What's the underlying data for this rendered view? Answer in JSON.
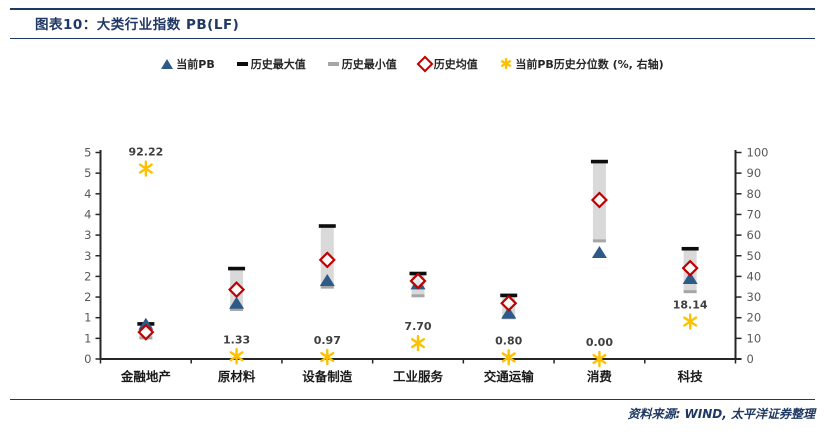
{
  "header": {
    "title": "图表10：大类行业指数 PB(LF)"
  },
  "legend": {
    "items": [
      {
        "label": "当前PB",
        "marker": "triangle-icon",
        "color": "#2D5A87"
      },
      {
        "label": "历史最大值",
        "marker": "dash-icon",
        "color": "#0D0D0D"
      },
      {
        "label": "历史最小值",
        "marker": "dash-icon",
        "color": "#A6A6A6"
      },
      {
        "label": "历史均值",
        "marker": "diamond-icon",
        "color": "#C00000"
      },
      {
        "label": "当前PB历史分位数 (%, 右轴)",
        "marker": "asterisk-icon",
        "color": "#FFC000"
      }
    ]
  },
  "footer": {
    "source": "资料来源: WIND, 太平洋证券整理"
  },
  "colors": {
    "navy": "#1F3864",
    "axis": "#262626",
    "tick_text": "#595959",
    "bar": "#D9D9D9",
    "max_dash": "#0D0D0D",
    "min_dash": "#A6A6A6",
    "mean_diamond": "#C00000",
    "current_triangle": "#2D5A87",
    "asterisk": "#FFC000",
    "pct_label": "#3F3F3F",
    "category_text": "#1A1A1A"
  },
  "chart_data": {
    "type": "range-bar with scatter markers (high-low PB band) + percentile on secondary axis",
    "title": "大类行业指数 PB(LF)",
    "categories": [
      "金融地产",
      "原材料",
      "设备制造",
      "工业服务",
      "交通运输",
      "消费",
      "科技"
    ],
    "series": [
      {
        "name": "当前PB",
        "marker": "triangle",
        "values": [
          0.84,
          1.35,
          1.9,
          1.82,
          1.11,
          2.58,
          1.95
        ]
      },
      {
        "name": "历史最大值",
        "marker": "dash",
        "values": [
          0.85,
          2.19,
          3.22,
          2.07,
          1.54,
          4.78,
          2.67
        ]
      },
      {
        "name": "历史最小值",
        "marker": "dash",
        "values": [
          0.51,
          1.2,
          1.74,
          1.53,
          1.0,
          2.86,
          1.63
        ]
      },
      {
        "name": "历史均值",
        "marker": "diamond",
        "values": [
          0.65,
          1.68,
          2.4,
          1.89,
          1.35,
          3.85,
          2.2
        ]
      },
      {
        "name": "当前PB历史分位数(%, 右轴)",
        "marker": "asterisk",
        "axis": "right",
        "values": [
          92.22,
          1.33,
          0.97,
          7.7,
          0.8,
          0.0,
          18.14
        ]
      }
    ],
    "pct_labels": [
      "92.22",
      "1.33",
      "0.97",
      "7.70",
      "0.80",
      "0.00",
      "18.14"
    ],
    "left_axis": {
      "min": 0,
      "max": 5,
      "step": 0.5,
      "tick_labels_bottom_up": [
        "0",
        "1",
        "1",
        "2",
        "2",
        "3",
        "3",
        "4",
        "4",
        "5",
        "5"
      ]
    },
    "right_axis": {
      "min": 0,
      "max": 100,
      "step": 10
    },
    "grid": false,
    "legend_position": "top-center"
  }
}
